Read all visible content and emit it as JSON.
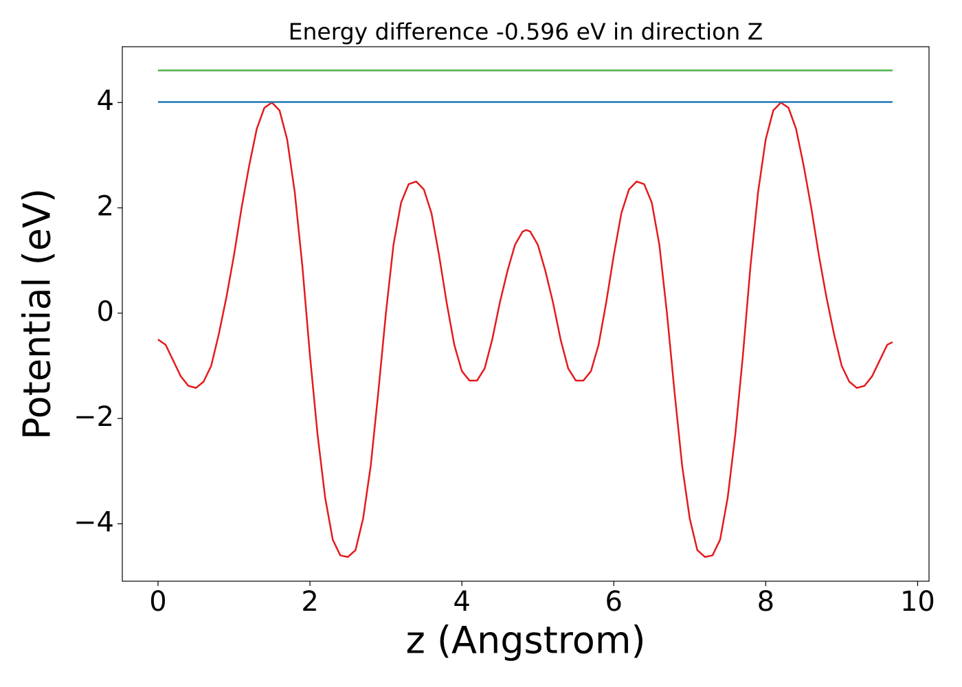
{
  "chart_data": {
    "type": "line",
    "title": "Energy difference -0.596 eV in direction Z",
    "x_label": "z (Angstrom)",
    "y_label": "Potential (eV)",
    "xlim": [
      -0.47,
      10.15
    ],
    "ylim": [
      -5.09,
      5.06
    ],
    "xticks": [
      0,
      2,
      4,
      6,
      8,
      10
    ],
    "yticks": [
      {
        "value": -4,
        "label": "−4"
      },
      {
        "value": -2,
        "label": "−2"
      },
      0,
      2,
      4
    ],
    "series": [
      {
        "color": "#e41a1c",
        "x": [
          0,
          0.1,
          0.2,
          0.3,
          0.4,
          0.5,
          0.6,
          0.7,
          0.8,
          0.9,
          1.0,
          1.1,
          1.2,
          1.3,
          1.4,
          1.5,
          1.6,
          1.7,
          1.8,
          1.9,
          2.0,
          2.1,
          2.2,
          2.3,
          2.4,
          2.5,
          2.6,
          2.7,
          2.8,
          2.9,
          3.0,
          3.1,
          3.2,
          3.3,
          3.4,
          3.5,
          3.6,
          3.7,
          3.8,
          3.9,
          4.0,
          4.1,
          4.2,
          4.3,
          4.4,
          4.5,
          4.6,
          4.7,
          4.8,
          4.85,
          4.9,
          5.0,
          5.1,
          5.2,
          5.3,
          5.4,
          5.5,
          5.6,
          5.7,
          5.8,
          5.9,
          6.0,
          6.1,
          6.2,
          6.3,
          6.4,
          6.5,
          6.6,
          6.7,
          6.8,
          6.9,
          7.0,
          7.1,
          7.2,
          7.3,
          7.4,
          7.5,
          7.6,
          7.7,
          7.8,
          7.9,
          8.0,
          8.1,
          8.2,
          8.3,
          8.4,
          8.5,
          8.6,
          8.7,
          8.8,
          8.9,
          9.0,
          9.1,
          9.2,
          9.3,
          9.4,
          9.5,
          9.6,
          9.67
        ],
        "values": [
          -0.5,
          -0.6,
          -0.9,
          -1.2,
          -1.38,
          -1.42,
          -1.3,
          -1.0,
          -0.4,
          0.3,
          1.1,
          2.0,
          2.8,
          3.5,
          3.9,
          4.0,
          3.85,
          3.3,
          2.3,
          0.9,
          -0.8,
          -2.3,
          -3.5,
          -4.3,
          -4.6,
          -4.63,
          -4.5,
          -3.9,
          -2.9,
          -1.5,
          0.0,
          1.3,
          2.1,
          2.45,
          2.5,
          2.35,
          1.9,
          1.1,
          0.2,
          -0.6,
          -1.1,
          -1.28,
          -1.28,
          -1.05,
          -0.5,
          0.2,
          0.8,
          1.3,
          1.55,
          1.58,
          1.55,
          1.3,
          0.8,
          0.2,
          -0.5,
          -1.05,
          -1.28,
          -1.28,
          -1.1,
          -0.6,
          0.2,
          1.1,
          1.9,
          2.35,
          2.5,
          2.45,
          2.1,
          1.3,
          0.0,
          -1.5,
          -2.9,
          -3.9,
          -4.5,
          -4.63,
          -4.6,
          -4.3,
          -3.5,
          -2.3,
          -0.8,
          0.9,
          2.3,
          3.3,
          3.85,
          4.0,
          3.9,
          3.5,
          2.8,
          2.0,
          1.1,
          0.3,
          -0.4,
          -1.0,
          -1.3,
          -1.42,
          -1.38,
          -1.2,
          -0.9,
          -0.6,
          -0.55
        ]
      },
      {
        "color": "#1f77b4",
        "x": [
          0,
          9.67
        ],
        "values": [
          4.01,
          4.01
        ]
      },
      {
        "color": "#4daf4a",
        "x": [
          0,
          9.67
        ],
        "values": [
          4.61,
          4.61
        ]
      }
    ]
  }
}
